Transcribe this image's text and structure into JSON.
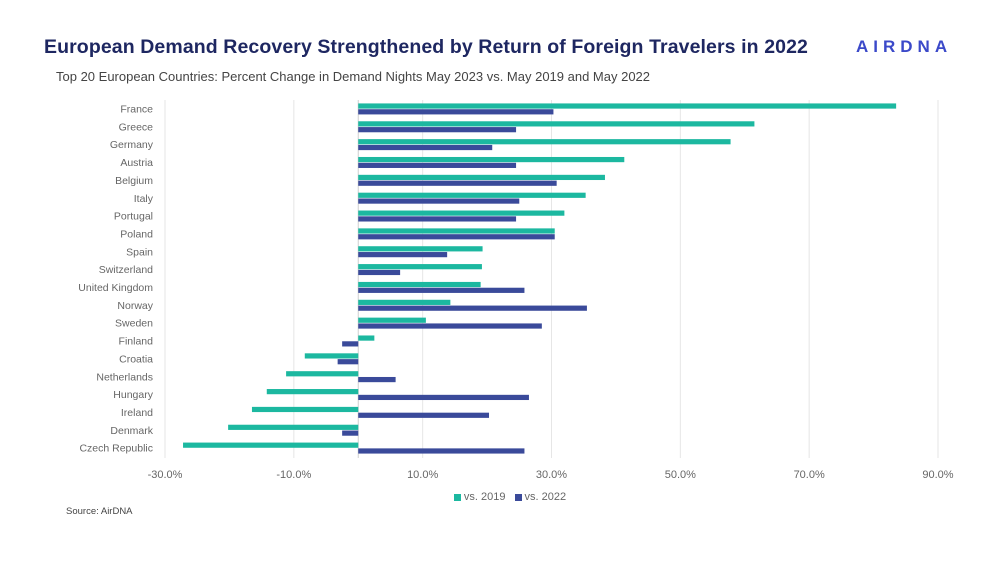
{
  "header": {
    "title": "European Demand Recovery Strengthened by Return of Foreign Travelers in 2022",
    "subtitle": "Top 20 European Countries: Percent Change in Demand Nights May 2023 vs. May 2019 and May 2022",
    "logo_text": "AIRDNA"
  },
  "footer": {
    "source": "Source: AirDNA"
  },
  "colors": {
    "vs2019": "#1cb8a0",
    "vs2022": "#3a4a9a",
    "grid": "#e6e6e6",
    "text": "#666666",
    "title": "#1e2761"
  },
  "chart_data": {
    "type": "bar",
    "orientation": "horizontal",
    "categories": [
      "France",
      "Greece",
      "Germany",
      "Austria",
      "Belgium",
      "Italy",
      "Portugal",
      "Poland",
      "Spain",
      "Switzerland",
      "United Kingdom",
      "Norway",
      "Sweden",
      "Finland",
      "Croatia",
      "Netherlands",
      "Hungary",
      "Ireland",
      "Denmark",
      "Czech Republic"
    ],
    "series": [
      {
        "name": "vs. 2019",
        "values": [
          83.5,
          61.5,
          57.8,
          41.3,
          38.3,
          35.3,
          32.0,
          30.5,
          19.3,
          19.2,
          19.0,
          14.3,
          10.5,
          2.5,
          -8.3,
          -11.2,
          -14.2,
          -16.5,
          -20.2,
          -27.2
        ]
      },
      {
        "name": "vs. 2022",
        "values": [
          30.3,
          24.5,
          20.8,
          24.5,
          30.8,
          25.0,
          24.5,
          30.5,
          13.8,
          6.5,
          25.8,
          35.5,
          28.5,
          -2.5,
          -3.2,
          5.8,
          26.5,
          20.3,
          -2.5,
          25.8
        ]
      }
    ],
    "xlim": [
      -30,
      90
    ],
    "xticks": [
      -30,
      -10,
      10,
      30,
      50,
      70,
      90
    ],
    "xtick_labels": [
      "-30.0%",
      "-10.0%",
      "10.0%",
      "30.0%",
      "50.0%",
      "70.0%",
      "90.0%"
    ],
    "grid": true,
    "legend_position": "bottom"
  }
}
